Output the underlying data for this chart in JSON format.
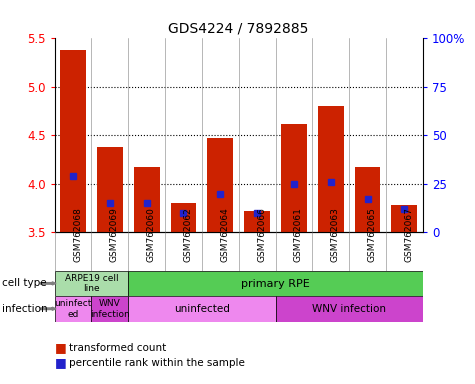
{
  "title": "GDS4224 / 7892885",
  "samples": [
    "GSM762068",
    "GSM762069",
    "GSM762060",
    "GSM762062",
    "GSM762064",
    "GSM762066",
    "GSM762061",
    "GSM762063",
    "GSM762065",
    "GSM762067"
  ],
  "transformed_counts": [
    5.38,
    4.38,
    4.17,
    3.8,
    4.47,
    3.72,
    4.62,
    4.8,
    4.17,
    3.78
  ],
  "percentile_ranks": [
    29,
    15,
    15,
    10,
    20,
    10,
    25,
    26,
    17,
    12
  ],
  "ylim": [
    3.5,
    5.5
  ],
  "yticks_left": [
    3.5,
    4.0,
    4.5,
    5.0,
    5.5
  ],
  "yticks_right": [
    0,
    25,
    50,
    75,
    100
  ],
  "bar_color": "#cc2200",
  "dot_color": "#2222cc",
  "cell_type_label_1": "ARPE19 cell\nline",
  "cell_type_label_2": "primary RPE",
  "cell_type_color_1": "#aaddaa",
  "cell_type_color_2": "#55cc55",
  "infection_spans": [
    [
      0,
      1,
      "uninfect\ned",
      "#ee88ee"
    ],
    [
      1,
      2,
      "WNV\ninfection",
      "#cc44cc"
    ],
    [
      2,
      6,
      "uninfected",
      "#ee88ee"
    ],
    [
      6,
      10,
      "WNV infection",
      "#cc44cc"
    ]
  ],
  "row_label_cell_type": "cell type",
  "row_label_infection": "infection",
  "legend_items": [
    "transformed count",
    "percentile rank within the sample"
  ]
}
